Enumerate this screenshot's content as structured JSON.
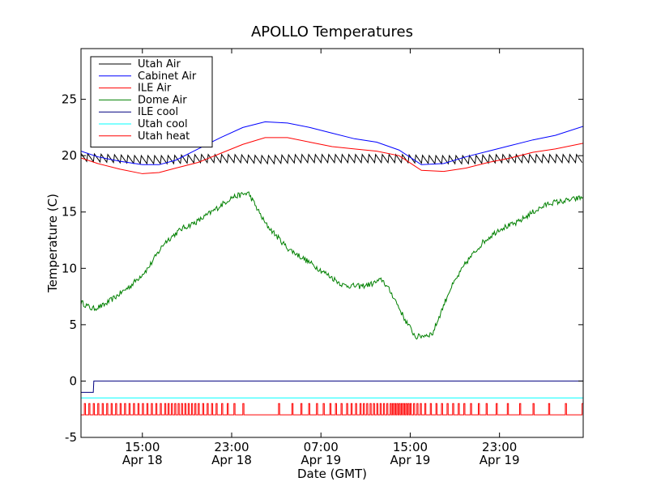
{
  "chart_data": {
    "type": "line",
    "title": "APOLLO Temperatures",
    "xlabel": "Date (GMT)",
    "ylabel": "Temperature (C)",
    "xlim": [
      9.5,
      54.5
    ],
    "ylim": [
      -5,
      29.5
    ],
    "y_ticks": [
      -5,
      0,
      5,
      10,
      15,
      20,
      25
    ],
    "x_ticks": [
      {
        "value": 15,
        "line1": "15:00",
        "line2": "Apr 18"
      },
      {
        "value": 23,
        "line1": "23:00",
        "line2": "Apr 18"
      },
      {
        "value": 31,
        "line1": "07:00",
        "line2": "Apr 19"
      },
      {
        "value": 39,
        "line1": "15:00",
        "line2": "Apr 19"
      },
      {
        "value": 47,
        "line1": "23:00",
        "line2": "Apr 19"
      }
    ],
    "legend_position": "top-left",
    "series": [
      {
        "name": "Utah Air",
        "color": "#000000",
        "x": [
          9.5,
          12,
          14.5,
          17,
          20,
          23,
          26,
          29,
          32,
          35,
          38,
          41,
          44,
          47,
          50,
          54.5
        ],
        "y": [
          19.8,
          19.7,
          19.6,
          19.6,
          19.7,
          19.7,
          19.6,
          19.7,
          19.7,
          19.7,
          19.7,
          19.6,
          19.6,
          19.7,
          19.7,
          19.7
        ],
        "sawtooth": {
          "period": 0.6,
          "amplitude": 0.9
        }
      },
      {
        "name": "Cabinet Air",
        "color": "#0000ff",
        "x": [
          9.5,
          11,
          13,
          15,
          16.5,
          18,
          20,
          22,
          24,
          26,
          28,
          30,
          32,
          34,
          36,
          38,
          40,
          42,
          44,
          46,
          48,
          50,
          52,
          54.5
        ],
        "y": [
          20.4,
          19.9,
          19.5,
          19.2,
          19.2,
          19.6,
          20.6,
          21.6,
          22.5,
          23.0,
          22.9,
          22.5,
          22.0,
          21.5,
          21.2,
          20.5,
          19.2,
          19.3,
          19.9,
          20.4,
          20.9,
          21.4,
          21.8,
          22.6
        ]
      },
      {
        "name": "ILE Air",
        "color": "#ff0000",
        "x": [
          9.5,
          11,
          13,
          15,
          16.5,
          18,
          20,
          22,
          24,
          26,
          28,
          30,
          32,
          34,
          36,
          38,
          40,
          42,
          44,
          46,
          48,
          50,
          52,
          54.5
        ],
        "y": [
          19.8,
          19.3,
          18.8,
          18.4,
          18.5,
          18.9,
          19.4,
          20.2,
          21.0,
          21.6,
          21.6,
          21.2,
          20.8,
          20.6,
          20.4,
          20.0,
          18.7,
          18.6,
          18.9,
          19.4,
          19.8,
          20.3,
          20.6,
          21.1
        ]
      },
      {
        "name": "Dome Air",
        "color": "#008000",
        "x": [
          9.5,
          10.5,
          11.5,
          12.5,
          14,
          15.5,
          17,
          18.5,
          20,
          21.5,
          23,
          24.5,
          26,
          28,
          30,
          31.5,
          33,
          34.5,
          35.5,
          36.5,
          37.5,
          38.5,
          39.5,
          41,
          42.5,
          44,
          45.5,
          47,
          48.5,
          50,
          51.5,
          53,
          54.5
        ],
        "y": [
          7.0,
          6.4,
          6.7,
          7.4,
          8.5,
          10.0,
          12.3,
          13.5,
          14.2,
          15.2,
          16.3,
          16.7,
          14.0,
          11.8,
          10.5,
          9.5,
          8.5,
          8.4,
          8.6,
          9.0,
          7.5,
          5.5,
          3.9,
          4.2,
          8.0,
          10.5,
          12.3,
          13.5,
          14.0,
          15.0,
          15.8,
          16.0,
          16.3
        ],
        "noise": 0.25
      },
      {
        "name": "ILE cool",
        "color": "#000080",
        "x": [
          9.5,
          10.6,
          10.65,
          54.5
        ],
        "y": [
          -1.0,
          -1.0,
          0.0,
          0.0
        ]
      },
      {
        "name": "Utah cool",
        "color": "#00ffff",
        "x": [
          9.5,
          54.5
        ],
        "y": [
          -1.5,
          -1.5
        ]
      },
      {
        "name": "Utah heat",
        "color": "#ff0000",
        "baseline": -3,
        "pulse_value": -2,
        "pulse_times": [
          9.8,
          10.2,
          10.6,
          11.0,
          11.4,
          11.8,
          12.2,
          12.6,
          13.0,
          13.4,
          13.8,
          14.2,
          14.6,
          15.0,
          15.4,
          15.8,
          16.2,
          16.6,
          17.0,
          17.3,
          17.6,
          17.9,
          18.2,
          18.5,
          18.8,
          19.1,
          19.4,
          19.7,
          20.0,
          20.4,
          20.8,
          21.2,
          21.6,
          22.1,
          22.6,
          23.2,
          24.0,
          27.2,
          28.4,
          29.2,
          29.9,
          30.6,
          31.2,
          31.8,
          32.3,
          32.8,
          33.3,
          33.7,
          34.1,
          34.5,
          34.8,
          35.1,
          35.4,
          35.7,
          36.0,
          36.3,
          36.6,
          36.9,
          37.2,
          37.4,
          37.6,
          37.8,
          38.0,
          38.2,
          38.4,
          38.6,
          38.8,
          39.0,
          39.3,
          39.6,
          39.9,
          40.3,
          40.8,
          41.3,
          41.8,
          42.3,
          42.8,
          43.3,
          43.8,
          44.4,
          45.1,
          45.8,
          46.7,
          47.7,
          48.8,
          50.0,
          51.4,
          52.9,
          54.4
        ],
        "pulse_width": 0.1
      }
    ]
  }
}
